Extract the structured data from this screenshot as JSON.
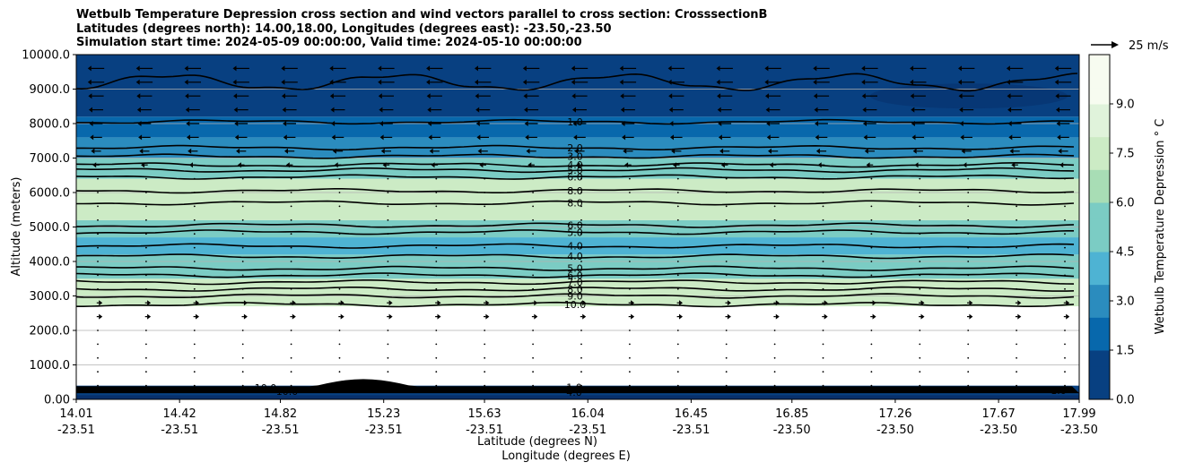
{
  "chart_data": {
    "type": "heatmap",
    "title_lines": [
      "Wetbulb Temperature Depression cross section and wind vectors parallel to cross section: CrosssectionB",
      "Latitudes (degrees north): 14.00,18.00, Longitudes (degrees east): -23.50,-23.50",
      "Simulation start time: 2024-05-09 00:00:00, Valid time: 2024-05-10 00:00:00"
    ],
    "ylabel": "Altitude (meters)",
    "xlabel_lat": "Latitude (degrees N)",
    "xlabel_lon": "Longitude (degrees E)",
    "ylim": [
      0,
      10000
    ],
    "yticks": [
      "0.00",
      "1000.0",
      "2000.0",
      "3000.0",
      "4000.0",
      "5000.0",
      "6000.0",
      "7000.0",
      "8000.0",
      "9000.0",
      "10000.0"
    ],
    "ytick_values": [
      0,
      1000,
      2000,
      3000,
      4000,
      5000,
      6000,
      7000,
      8000,
      9000,
      10000
    ],
    "xticks": [
      {
        "lat": "14.01",
        "lon": "-23.51"
      },
      {
        "lat": "14.42",
        "lon": "-23.51"
      },
      {
        "lat": "14.82",
        "lon": "-23.51"
      },
      {
        "lat": "15.23",
        "lon": "-23.51"
      },
      {
        "lat": "15.63",
        "lon": "-23.51"
      },
      {
        "lat": "16.04",
        "lon": "-23.51"
      },
      {
        "lat": "16.45",
        "lon": "-23.51"
      },
      {
        "lat": "16.85",
        "lon": "-23.50"
      },
      {
        "lat": "17.26",
        "lon": "-23.50"
      },
      {
        "lat": "17.67",
        "lon": "-23.50"
      },
      {
        "lat": "17.99",
        "lon": "-23.50"
      }
    ],
    "xlim": [
      14.01,
      17.99
    ],
    "colorbar": {
      "label": "Wetbulb Temperature Depression ° C",
      "ticks": [
        "0.0",
        "1.5",
        "3.0",
        "4.5",
        "6.0",
        "7.5",
        "9.0"
      ],
      "tick_values": [
        0,
        1.5,
        3,
        4.5,
        6,
        7.5,
        9
      ],
      "range": [
        0,
        10.5
      ],
      "colormap": "GnBu_r",
      "colors": [
        "#084081",
        "#0868ac",
        "#2b8cbe",
        "#4eb3d3",
        "#7bccc4",
        "#a8ddb5",
        "#ccebc5",
        "#e0f3db",
        "#f7fcf0"
      ]
    },
    "wind_key": "25 m/s",
    "layers": [
      {
        "alt_bottom": 0,
        "alt_top": 400,
        "depression": 0.5
      },
      {
        "alt_bottom": 400,
        "alt_top": 2700,
        "depression": 11
      },
      {
        "alt_bottom": 2700,
        "alt_top": 3500,
        "depression": 8.5
      },
      {
        "alt_bottom": 3500,
        "alt_top": 4200,
        "depression": 5.0
      },
      {
        "alt_bottom": 4200,
        "alt_top": 4700,
        "depression": 4.0
      },
      {
        "alt_bottom": 4700,
        "alt_top": 5200,
        "depression": 5.5
      },
      {
        "alt_bottom": 5200,
        "alt_top": 6400,
        "depression": 8.2
      },
      {
        "alt_bottom": 6400,
        "alt_top": 7000,
        "depression": 5.5
      },
      {
        "alt_bottom": 7000,
        "alt_top": 7600,
        "depression": 3.0
      },
      {
        "alt_bottom": 7600,
        "alt_top": 8200,
        "depression": 1.8
      },
      {
        "alt_bottom": 8200,
        "alt_top": 10000,
        "depression": 0.6
      }
    ],
    "contours": [
      {
        "level": "1.0",
        "alt": 8050
      },
      {
        "level": "2.0",
        "alt": 7300
      },
      {
        "level": "3.0",
        "alt": 7050
      },
      {
        "level": "4.0",
        "alt": 6800
      },
      {
        "level": "5.0",
        "alt": 6650
      },
      {
        "level": "6.0",
        "alt": 6450
      },
      {
        "level": "8.0",
        "alt": 6050
      },
      {
        "level": "8.0",
        "alt": 5700
      },
      {
        "level": "6.0",
        "alt": 5050
      },
      {
        "level": "5.0",
        "alt": 4850
      },
      {
        "level": "4.0",
        "alt": 4450
      },
      {
        "level": "4.0",
        "alt": 4150
      },
      {
        "level": "5.0",
        "alt": 3800
      },
      {
        "level": "6.0",
        "alt": 3600
      },
      {
        "level": "7.0",
        "alt": 3400
      },
      {
        "level": "8.0",
        "alt": 3200
      },
      {
        "level": "9.0",
        "alt": 3000
      },
      {
        "level": "10.0",
        "alt": 2750
      }
    ],
    "surface_labels": [
      "10.0",
      "1.0",
      "2.0",
      "4.0",
      "1.0",
      "10.0"
    ],
    "wind_rows": [
      {
        "alt": 9600,
        "u": -12
      },
      {
        "alt": 9200,
        "u": -12
      },
      {
        "alt": 8800,
        "u": -11
      },
      {
        "alt": 8400,
        "u": -10
      },
      {
        "alt": 8000,
        "u": -9
      },
      {
        "alt": 7600,
        "u": -8
      },
      {
        "alt": 7200,
        "u": -6
      },
      {
        "alt": 6800,
        "u": -3
      },
      {
        "alt": 6400,
        "u": -1
      },
      {
        "alt": 6000,
        "u": -0.5
      },
      {
        "alt": 5600,
        "u": -0.5
      },
      {
        "alt": 5200,
        "u": -0.5
      },
      {
        "alt": 4800,
        "u": -0.5
      },
      {
        "alt": 4400,
        "u": -1
      },
      {
        "alt": 4000,
        "u": -0.5
      },
      {
        "alt": 3600,
        "u": 0.5
      },
      {
        "alt": 3200,
        "u": 1
      },
      {
        "alt": 2800,
        "u": 2
      },
      {
        "alt": 2400,
        "u": 2
      },
      {
        "alt": 2000,
        "u": 1
      },
      {
        "alt": 1600,
        "u": 0.5
      },
      {
        "alt": 1200,
        "u": 0.5
      },
      {
        "alt": 800,
        "u": 0.5
      },
      {
        "alt": 400,
        "u": 0.5
      }
    ]
  }
}
